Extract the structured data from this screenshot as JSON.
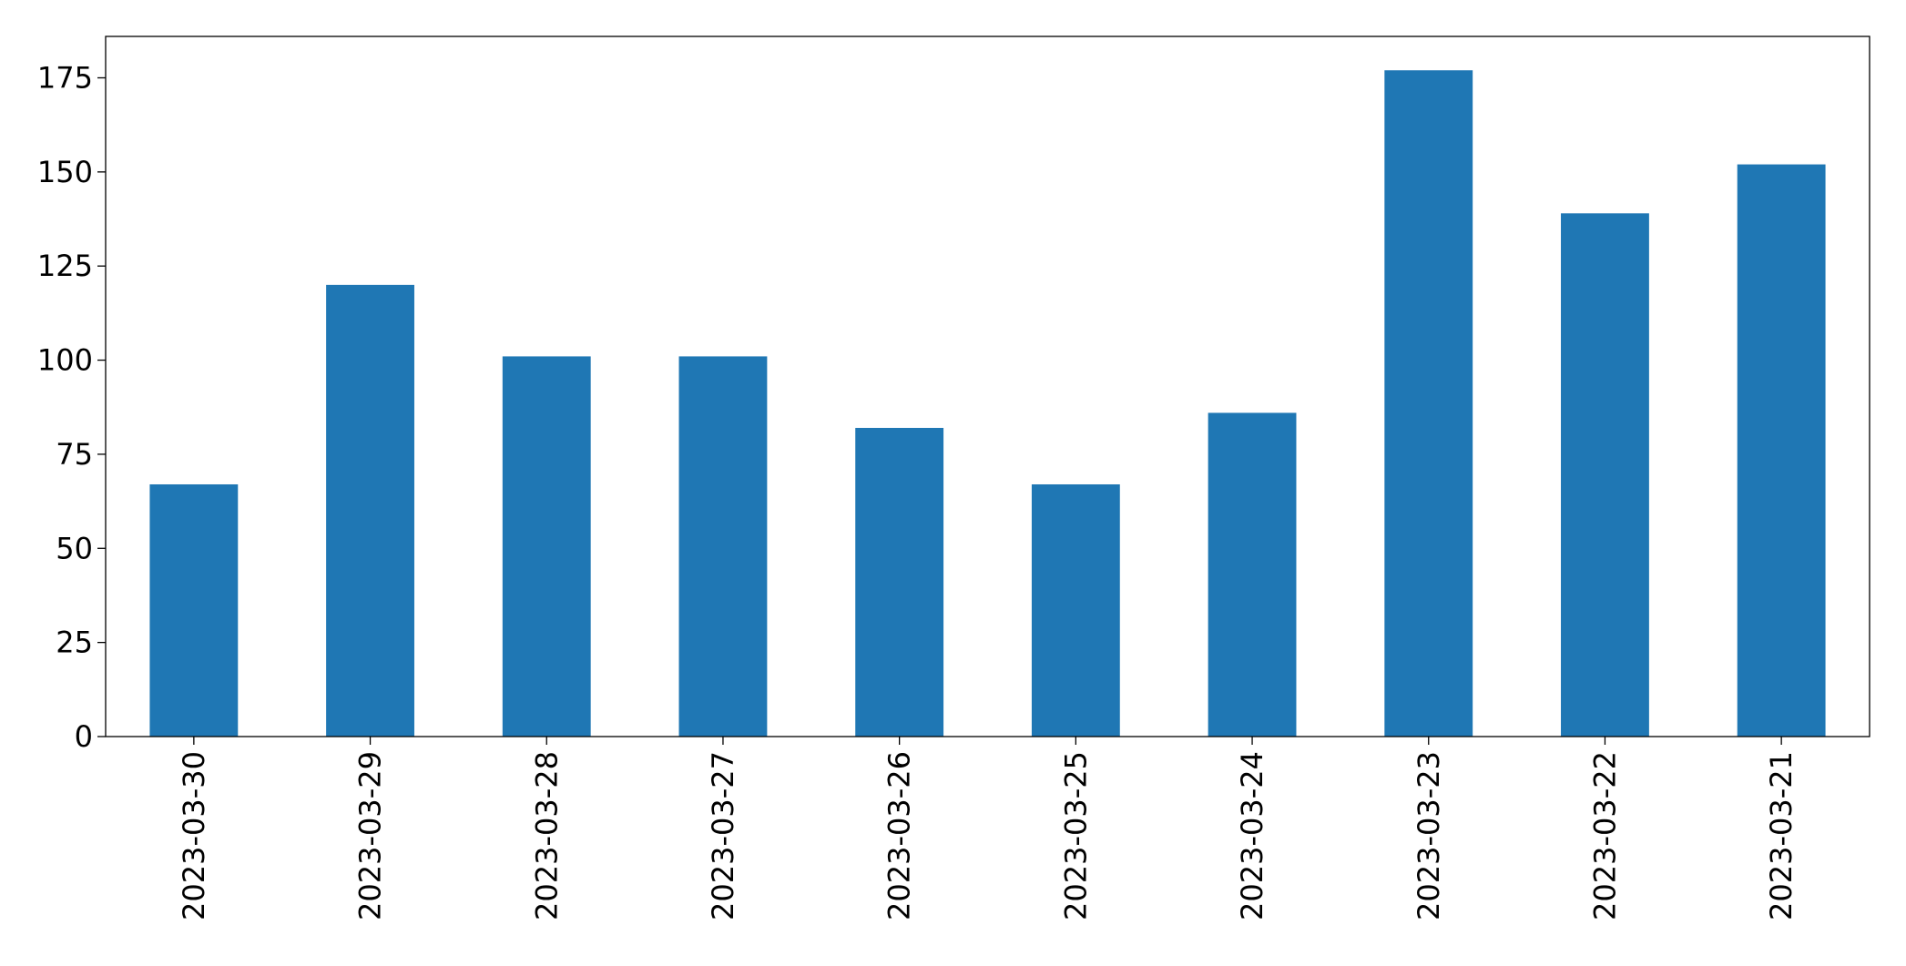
{
  "chart_data": {
    "type": "bar",
    "categories": [
      "2023-03-30",
      "2023-03-29",
      "2023-03-28",
      "2023-03-27",
      "2023-03-26",
      "2023-03-25",
      "2023-03-24",
      "2023-03-23",
      "2023-03-22",
      "2023-03-21"
    ],
    "values": [
      67,
      120,
      101,
      101,
      82,
      67,
      86,
      177,
      139,
      152
    ],
    "color": "#1f77b4",
    "ylim": [
      0,
      186
    ],
    "yticks": [
      0,
      25,
      50,
      75,
      100,
      125,
      150,
      175
    ],
    "grid": false
  }
}
